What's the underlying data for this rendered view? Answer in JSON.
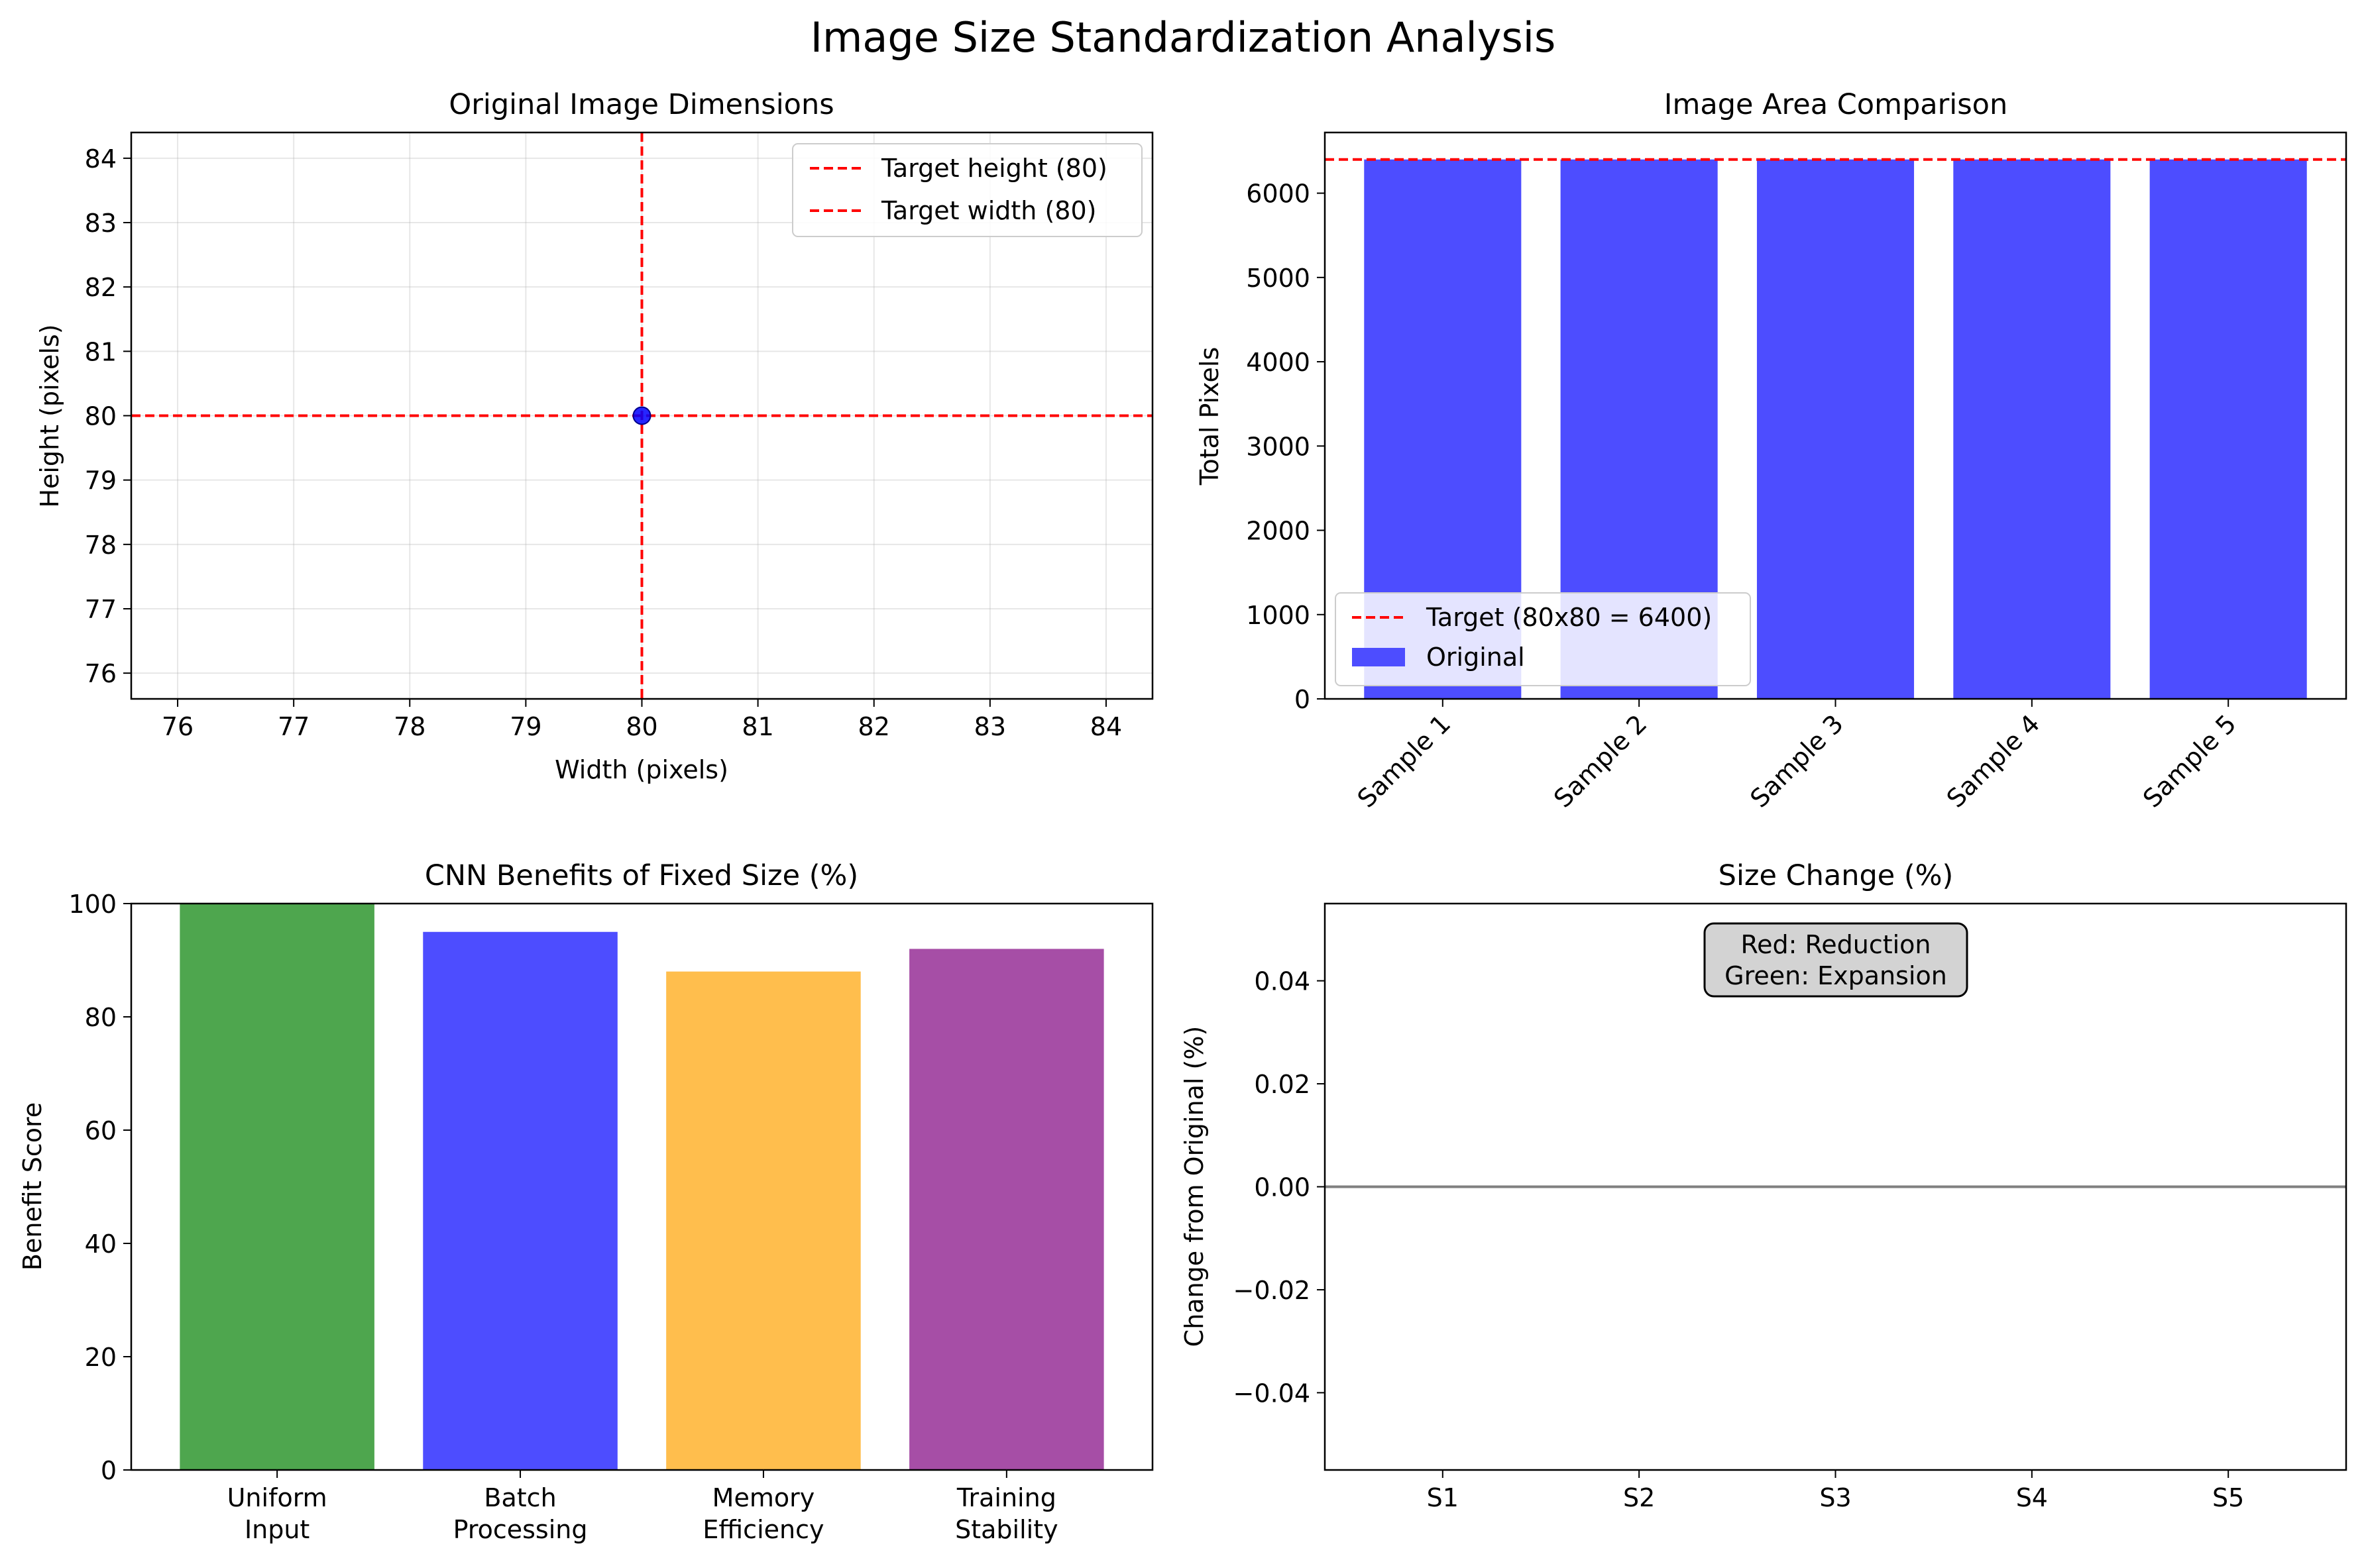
{
  "figure": {
    "title": "Image Size Standardization Analysis"
  },
  "chart_data": [
    {
      "type": "scatter",
      "title": "Original Image Dimensions",
      "xlabel": "Width (pixels)",
      "ylabel": "Height (pixels)",
      "xlim": [
        75.6,
        84.4
      ],
      "ylim": [
        75.6,
        84.4
      ],
      "xticks": [
        "76",
        "77",
        "78",
        "79",
        "80",
        "81",
        "82",
        "83",
        "84"
      ],
      "yticks": [
        "76",
        "77",
        "78",
        "79",
        "80",
        "81",
        "82",
        "83",
        "84"
      ],
      "grid": true,
      "points": [
        {
          "x": 80,
          "y": 80
        }
      ],
      "reference_lines": [
        {
          "orientation": "horizontal",
          "value": 80,
          "label": "Target height (80)",
          "color": "#ff0000",
          "style": "dashed"
        },
        {
          "orientation": "vertical",
          "value": 80,
          "label": "Target width (80)",
          "color": "#ff0000",
          "style": "dashed"
        }
      ],
      "legend": "top-right",
      "point_color": "#0000ff"
    },
    {
      "type": "bar",
      "title": "Image Area Comparison",
      "xlabel": "",
      "ylabel": "Total Pixels",
      "categories": [
        "Sample 1",
        "Sample 2",
        "Sample 3",
        "Sample 4",
        "Sample 5"
      ],
      "series": [
        {
          "name": "Original",
          "values": [
            6400,
            6400,
            6400,
            6400,
            6400
          ],
          "color": "#4d4dff"
        }
      ],
      "reference_lines": [
        {
          "orientation": "horizontal",
          "value": 6400,
          "label": "Target (80x80 = 6400)",
          "color": "#ff0000",
          "style": "dashed"
        }
      ],
      "ylim": [
        0,
        6720
      ],
      "yticks": [
        "0",
        "1000",
        "2000",
        "3000",
        "4000",
        "5000",
        "6000"
      ],
      "legend": "bottom-left",
      "tick_rotation": 45
    },
    {
      "type": "bar",
      "title": "CNN Benefits of Fixed Size (%)",
      "xlabel": "",
      "ylabel": "Benefit Score",
      "categories": [
        "Uniform\nInput",
        "Batch\nProcessing",
        "Memory\nEfficiency",
        "Training\nStability"
      ],
      "values": [
        100,
        95,
        88,
        92
      ],
      "colors": [
        "#4ea64e",
        "#4d4dff",
        "#ffbe4d",
        "#a64ea6"
      ],
      "ylim": [
        0,
        100
      ],
      "yticks": [
        "0",
        "20",
        "40",
        "60",
        "80",
        "100"
      ]
    },
    {
      "type": "bar",
      "title": "Size Change (%)",
      "xlabel": "",
      "ylabel": "Change from Original (%)",
      "categories": [
        "S1",
        "S2",
        "S3",
        "S4",
        "S5"
      ],
      "values": [
        0,
        0,
        0,
        0,
        0
      ],
      "ylim": [
        -0.055,
        0.055
      ],
      "yticks": [
        "−0.04",
        "−0.02",
        "0.00",
        "0.02",
        "0.04"
      ],
      "zero_line_color": "#808080",
      "annotation": [
        "Red: Reduction",
        "Green: Expansion"
      ]
    }
  ]
}
